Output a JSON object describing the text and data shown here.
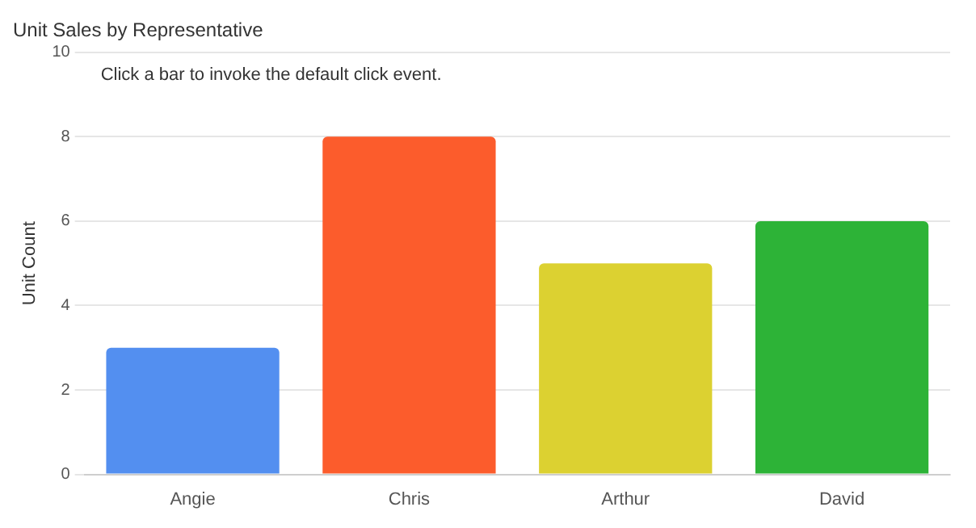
{
  "chart_data": {
    "type": "bar",
    "title": "Unit Sales by Representative",
    "subtitle": "Click a bar to invoke the default click event.",
    "ylabel": "Unit Count",
    "categories": [
      "Angie",
      "Chris",
      "Arthur",
      "David"
    ],
    "values": [
      3,
      8,
      5,
      6
    ],
    "colors": [
      "#538ff0",
      "#fc5c2c",
      "#dcd131",
      "#2db337"
    ],
    "ylim": [
      0,
      10
    ],
    "yticks": [
      0,
      2,
      4,
      6,
      8,
      10
    ],
    "grid": "y"
  }
}
